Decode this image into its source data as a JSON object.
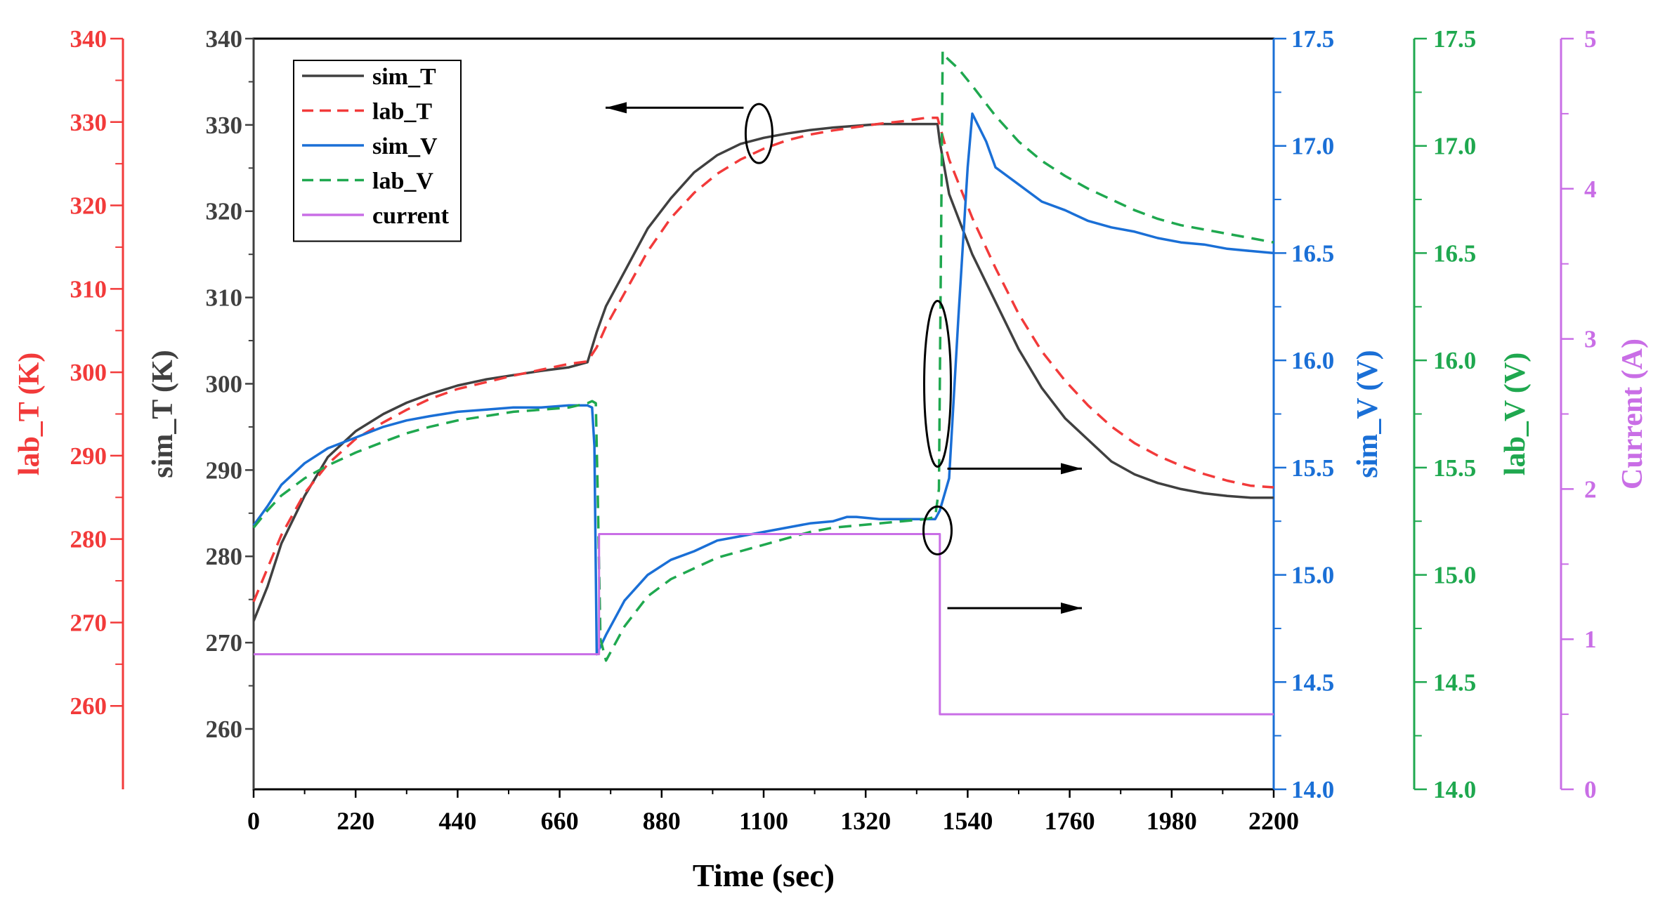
{
  "chart_data": {
    "type": "line",
    "xlabel": "Time (sec)",
    "xlim": [
      0,
      2200
    ],
    "xticks": [
      0,
      220,
      440,
      660,
      880,
      1100,
      1320,
      1540,
      1760,
      1980,
      2200
    ],
    "axes": {
      "left_outer": {
        "label": "lab_T (K)",
        "color": "#f23a3a",
        "ylim": [
          250,
          340
        ],
        "ticks": [
          260,
          270,
          280,
          290,
          300,
          310,
          320,
          330,
          340
        ]
      },
      "left_main": {
        "label": "sim_T (K)",
        "color": "#404040",
        "ylim": [
          253,
          340
        ],
        "ticks": [
          260,
          270,
          280,
          290,
          300,
          310,
          320,
          330,
          340
        ]
      },
      "right_sim_v": {
        "label": "sim_V (V)",
        "color": "#1a6fd6",
        "ylim": [
          14.0,
          17.5
        ],
        "ticks": [
          "14.0",
          "14.5",
          "15.0",
          "15.5",
          "16.0",
          "16.5",
          "17.0",
          "17.5"
        ]
      },
      "right_lab_v": {
        "label": "lab_V (V)",
        "color": "#1fa84f",
        "ylim": [
          14.0,
          17.5
        ],
        "ticks": [
          "14.0",
          "14.5",
          "15.0",
          "15.5",
          "16.0",
          "16.5",
          "17.0",
          "17.5"
        ]
      },
      "right_current": {
        "label": "Current (A)",
        "color": "#c96ee6",
        "ylim": [
          0,
          5
        ],
        "ticks": [
          "0",
          "1",
          "2",
          "3",
          "4",
          "5"
        ]
      }
    },
    "legend": [
      "sim_T",
      "lab_T",
      "sim_V",
      "lab_V",
      "current"
    ],
    "series": [
      {
        "name": "sim_T",
        "axis": "left_main",
        "color": "#404040",
        "dash": "solid",
        "x": [
          0,
          30,
          60,
          110,
          160,
          220,
          280,
          330,
          380,
          440,
          500,
          560,
          620,
          680,
          720,
          740,
          760,
          800,
          850,
          900,
          950,
          1000,
          1050,
          1100,
          1150,
          1200,
          1250,
          1300,
          1350,
          1400,
          1450,
          1475,
          1480,
          1500,
          1550,
          1600,
          1650,
          1700,
          1750,
          1800,
          1850,
          1900,
          1950,
          2000,
          2050,
          2100,
          2150,
          2200
        ],
        "y": [
          272.5,
          276.5,
          281.5,
          287,
          291.5,
          294.5,
          296.5,
          297.8,
          298.8,
          299.8,
          300.5,
          301.0,
          301.5,
          301.9,
          302.5,
          306,
          309,
          313,
          318,
          321.5,
          324.5,
          326.5,
          327.8,
          328.5,
          329.0,
          329.4,
          329.7,
          329.9,
          330.1,
          330.1,
          330.1,
          330.1,
          328,
          322,
          315,
          309.5,
          304,
          299.5,
          296,
          293.5,
          291,
          289.5,
          288.5,
          287.8,
          287.3,
          287.0,
          286.8,
          286.8
        ]
      },
      {
        "name": "lab_T",
        "axis": "left_outer",
        "color": "#f23a3a",
        "dash": "dashed",
        "x": [
          0,
          30,
          60,
          110,
          160,
          220,
          280,
          330,
          380,
          440,
          500,
          560,
          620,
          680,
          720,
          740,
          760,
          800,
          850,
          900,
          950,
          1000,
          1050,
          1100,
          1150,
          1200,
          1250,
          1300,
          1350,
          1400,
          1450,
          1475,
          1480,
          1500,
          1550,
          1600,
          1650,
          1700,
          1750,
          1800,
          1850,
          1900,
          1950,
          2000,
          2050,
          2100,
          2150,
          2200
        ],
        "y": [
          272.5,
          276.5,
          280.5,
          285.5,
          289,
          292,
          294,
          295.5,
          296.8,
          298,
          298.8,
          299.6,
          300.3,
          301.0,
          301.3,
          303.0,
          305.5,
          309.5,
          314.5,
          318.5,
          321.5,
          323.8,
          325.5,
          326.8,
          327.8,
          328.5,
          329.0,
          329.4,
          329.8,
          330.1,
          330.5,
          330.5,
          329.5,
          325.5,
          318.5,
          312.5,
          307.0,
          302.5,
          299.0,
          296.0,
          293.5,
          291.5,
          290.0,
          288.8,
          287.8,
          287.0,
          286.4,
          286.2
        ]
      },
      {
        "name": "sim_V",
        "axis": "right_sim_v",
        "color": "#1a6fd6",
        "dash": "solid",
        "x": [
          0,
          30,
          60,
          110,
          160,
          220,
          280,
          330,
          380,
          440,
          500,
          560,
          620,
          680,
          720,
          730,
          735,
          740,
          760,
          780,
          800,
          850,
          900,
          950,
          1000,
          1050,
          1100,
          1150,
          1200,
          1250,
          1280,
          1300,
          1350,
          1400,
          1450,
          1470,
          1480,
          1500,
          1520,
          1540,
          1550,
          1580,
          1600,
          1650,
          1700,
          1750,
          1800,
          1850,
          1900,
          1950,
          2000,
          2050,
          2100,
          2150,
          2200
        ],
        "y": [
          15.23,
          15.32,
          15.42,
          15.52,
          15.59,
          15.64,
          15.69,
          15.72,
          15.74,
          15.76,
          15.77,
          15.78,
          15.78,
          15.79,
          15.79,
          15.78,
          15.6,
          14.63,
          14.72,
          14.8,
          14.88,
          15.0,
          15.07,
          15.11,
          15.16,
          15.18,
          15.2,
          15.22,
          15.24,
          15.25,
          15.27,
          15.27,
          15.26,
          15.26,
          15.26,
          15.26,
          15.3,
          15.45,
          16.2,
          16.9,
          17.15,
          17.02,
          16.9,
          16.82,
          16.74,
          16.7,
          16.65,
          16.62,
          16.6,
          16.57,
          16.55,
          16.54,
          16.52,
          16.51,
          16.5
        ]
      },
      {
        "name": "lab_V",
        "axis": "right_lab_v",
        "color": "#1fa84f",
        "dash": "dashed",
        "x": [
          0,
          30,
          60,
          110,
          160,
          220,
          280,
          330,
          380,
          440,
          500,
          560,
          620,
          680,
          720,
          730,
          738,
          742,
          748,
          760,
          780,
          800,
          850,
          900,
          950,
          1000,
          1050,
          1100,
          1150,
          1200,
          1250,
          1300,
          1350,
          1400,
          1450,
          1470,
          1478,
          1482,
          1486,
          1490,
          1520,
          1550,
          1600,
          1650,
          1700,
          1750,
          1800,
          1850,
          1900,
          1950,
          2000,
          2050,
          2100,
          2150,
          2200
        ],
        "y": [
          15.22,
          15.3,
          15.37,
          15.45,
          15.51,
          15.57,
          15.62,
          15.66,
          15.69,
          15.72,
          15.74,
          15.76,
          15.77,
          15.78,
          15.8,
          15.81,
          15.8,
          15.4,
          14.7,
          14.6,
          14.68,
          14.76,
          14.9,
          14.98,
          15.03,
          15.08,
          15.11,
          15.14,
          15.17,
          15.2,
          15.22,
          15.23,
          15.24,
          15.25,
          15.26,
          15.27,
          15.4,
          16.4,
          17.44,
          17.42,
          17.36,
          17.28,
          17.14,
          17.02,
          16.93,
          16.86,
          16.8,
          16.75,
          16.7,
          16.66,
          16.63,
          16.61,
          16.59,
          16.57,
          16.55
        ]
      },
      {
        "name": "current",
        "axis": "right_current",
        "color": "#c96ee6",
        "dash": "solid",
        "x": [
          0,
          745,
          745,
          1480,
          1480,
          2200
        ],
        "y": [
          0.9,
          0.9,
          1.7,
          1.7,
          0.5,
          0.5
        ]
      }
    ],
    "annotations": [
      {
        "type": "ellipse",
        "target": "sim_T/lab_T",
        "x": 1090,
        "y_simT": 329,
        "arrow": "left"
      },
      {
        "type": "ellipse",
        "target": "sim_V/lab_V",
        "x": 1475,
        "y_simT": 300,
        "arrow": "right"
      },
      {
        "type": "ellipse",
        "target": "current",
        "x": 1475,
        "y_simT": 283,
        "arrow": "right"
      }
    ]
  }
}
